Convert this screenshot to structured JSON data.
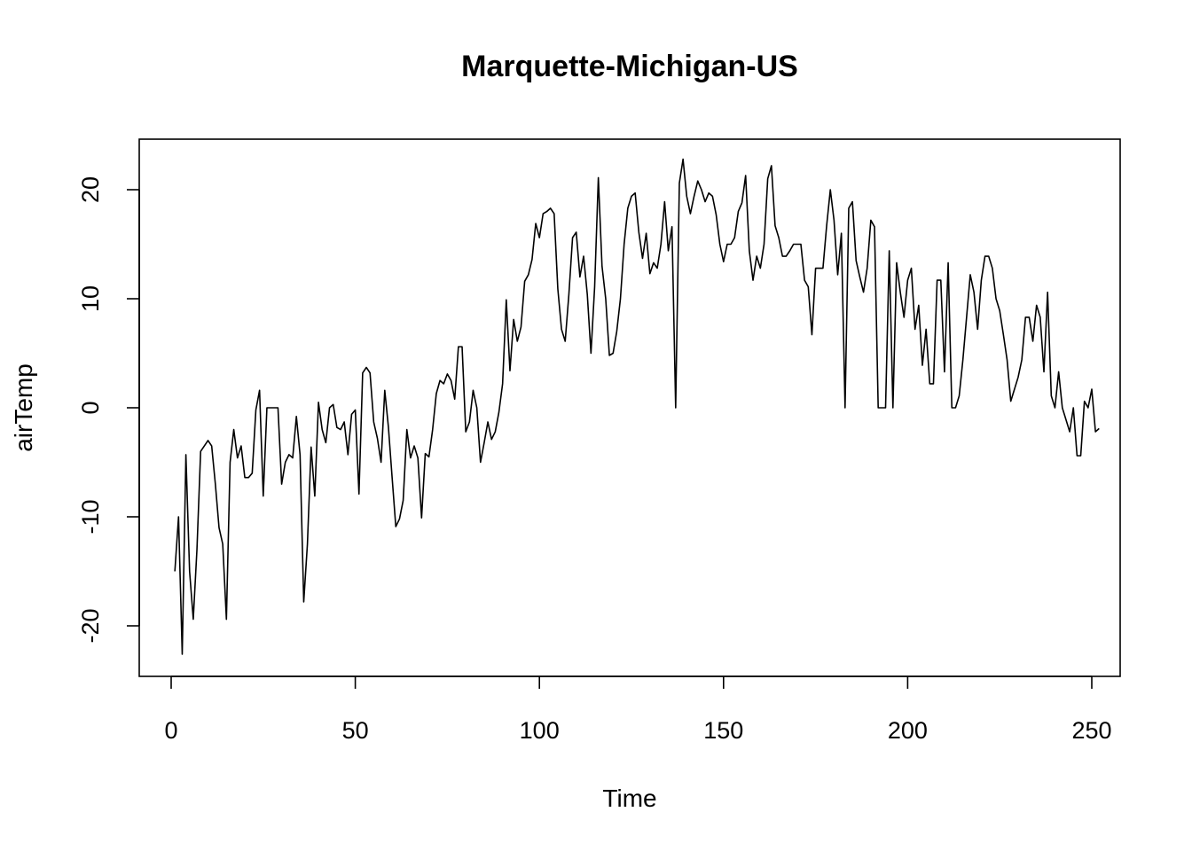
{
  "chart_data": {
    "type": "line",
    "title": "Marquette-Michigan-US",
    "xlabel": "Time",
    "ylabel": "airTemp",
    "xlim": [
      1,
      248
    ],
    "ylim": [
      -22.6,
      22.8
    ],
    "xticks": [
      0,
      50,
      100,
      150,
      200,
      250
    ],
    "yticks": [
      -20,
      -10,
      0,
      10,
      20
    ],
    "grid": false,
    "line_color": "#000000",
    "y": [
      -15,
      -10,
      -22.6,
      -4.3,
      -15,
      -19.4,
      -13,
      -4,
      -3.5,
      -3,
      -3.5,
      -7,
      -11,
      -12.5,
      -19.4,
      -5,
      -2,
      -4.6,
      -3.5,
      -6.4,
      -6.4,
      -6,
      -0.2,
      1.6,
      -8.1,
      0,
      0,
      0,
      0,
      -7,
      -5,
      -4.3,
      -4.6,
      -0.8,
      -4.3,
      -17.8,
      -12.5,
      -3.6,
      -8.1,
      0.5,
      -2,
      -3.2,
      0,
      0.3,
      -1.8,
      -2,
      -1.3,
      -4.3,
      -0.6,
      -0.2,
      -7.9,
      3.2,
      3.7,
      3.2,
      -1.3,
      -2.8,
      -5,
      1.6,
      -1.8,
      -6.4,
      -10.9,
      -10.2,
      -8.5,
      -2,
      -4.6,
      -3.5,
      -4.6,
      -10.1,
      -4.2,
      -4.5,
      -2,
      1.3,
      2.5,
      2.2,
      3.1,
      2.5,
      0.8,
      5.6,
      5.6,
      -2.2,
      -1.3,
      1.6,
      0,
      -5,
      -3.2,
      -1.3,
      -2.9,
      -2.2,
      -0.4,
      2.2,
      9.9,
      3.4,
      8.1,
      6.1,
      7.4,
      11.6,
      12.2,
      13.6,
      16.9,
      15.6,
      17.8,
      18,
      18.3,
      17.8,
      10.9,
      7.2,
      6.1,
      10.4,
      15.6,
      16.1,
      12,
      13.9,
      10.4,
      5,
      11.1,
      21.1,
      13,
      10,
      4.8,
      5,
      7,
      10,
      15,
      18.3,
      19.4,
      19.7,
      16.1,
      13.7,
      16,
      12.3,
      13.3,
      12.8,
      15,
      18.9,
      14.4,
      16.6,
      0,
      20.6,
      22.8,
      19.4,
      17.8,
      19.4,
      20.8,
      20,
      18.9,
      19.7,
      19.4,
      17.7,
      15,
      13.4,
      15,
      15,
      15.6,
      18,
      18.8,
      21.3,
      14.4,
      11.7,
      13.9,
      12.8,
      15,
      21,
      22.2,
      16.7,
      15.6,
      13.9,
      13.9,
      14.4,
      15,
      15,
      15,
      11.7,
      11.1,
      6.7,
      12.8,
      12.8,
      12.8,
      16.7,
      20,
      17.2,
      12.2,
      16,
      0,
      18.3,
      18.9,
      13.5,
      12,
      10.6,
      12.8,
      17.2,
      16.6,
      0,
      0,
      0,
      14.4,
      0,
      13.3,
      10.6,
      8.3,
      11.7,
      12.8,
      7.2,
      9.4,
      3.9,
      7.2,
      2.2,
      2.2,
      11.7,
      11.7,
      3.3,
      13.3,
      0,
      0,
      1.1,
      4.4,
      8.3,
      12.2,
      10.6,
      7.2,
      11.7,
      13.9,
      13.9,
      12.8,
      10,
      8.9,
      6.7,
      4.4,
      0.6,
      1.7,
      2.8,
      4.4,
      8.3,
      8.3,
      6.1,
      9.4,
      8.3,
      3.3,
      10.6,
      1.1,
      0,
      3.3,
      0,
      -1.1,
      -2.2,
      0,
      -4.4,
      -4.4,
      0.6,
      0,
      1.7,
      -2.2,
      -1.9
    ]
  }
}
